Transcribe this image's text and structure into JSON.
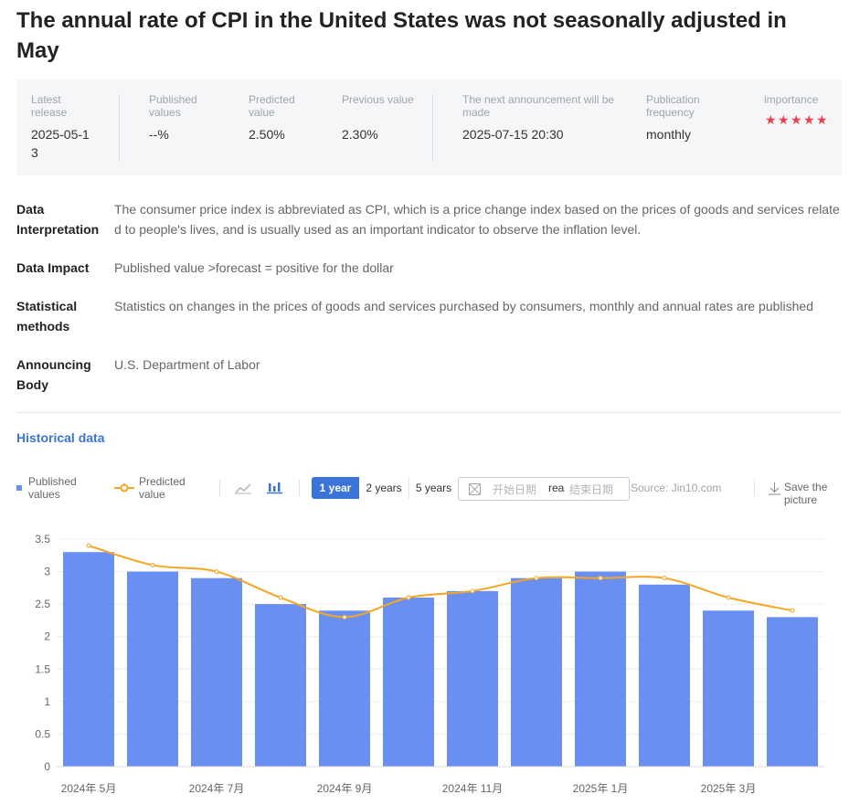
{
  "header": {
    "title": "The annual rate of CPI in the United States was not seasonally adjusted in May"
  },
  "summary": [
    {
      "label": "Latest release",
      "value": "2025-05-13"
    },
    {
      "label": "Published values",
      "value": "--%"
    },
    {
      "label": "Predicted value",
      "value": "2.50%"
    },
    {
      "label": "Previous value",
      "value": "2.30%"
    },
    {
      "label": "The next announcement will be made",
      "value": "2025-07-15 20:30"
    },
    {
      "label": "Publication frequency",
      "value": "monthly"
    },
    {
      "label": "importance",
      "stars": 5
    }
  ],
  "details": [
    {
      "label": "Data Interpretation",
      "text": "The consumer price index is abbreviated as CPI, which is a price change index based on the prices of goods and services related to people's lives, and is usually used as an important indicator to observe the inflation level."
    },
    {
      "label": "Data Impact",
      "text": "Published value >forecast = positive for the dollar"
    },
    {
      "label": "Statistical methods",
      "text": "Statistics on changes in the prices of goods and services purchased by consumers, monthly and annual rates are published"
    },
    {
      "label": "Announcing Body",
      "text": "U.S. Department of Labor"
    }
  ],
  "section_title": "Historical data",
  "controls": {
    "ranges": [
      "1 year",
      "2 years",
      "5 years"
    ],
    "start_placeholder": "开始日期",
    "separator": "rea",
    "end_placeholder": "结束日期",
    "source": "Source: Jin10.com",
    "save": "Save the picture"
  },
  "chart_data": {
    "type": "bar",
    "categories": [
      "2024年 5月",
      null,
      "2024年 7月",
      null,
      "2024年 9月",
      null,
      "2024年 11月",
      null,
      "2025年 1月",
      null,
      "2025年 3月",
      null
    ],
    "series": [
      {
        "name": "Published values",
        "type": "bar",
        "color": "#6a8ff2",
        "values": [
          3.3,
          3.0,
          2.9,
          2.5,
          2.4,
          2.6,
          2.7,
          2.9,
          3.0,
          2.8,
          2.4,
          2.3
        ]
      },
      {
        "name": "Predicted value",
        "type": "line",
        "color": "#f5a623",
        "values": [
          3.4,
          3.1,
          3.0,
          2.6,
          2.3,
          2.6,
          2.7,
          2.9,
          2.9,
          2.9,
          2.6,
          2.4
        ]
      }
    ],
    "ylim": [
      0,
      3.5
    ],
    "yticks": [
      0,
      0.5,
      1,
      1.5,
      2,
      2.5,
      3,
      3.5
    ],
    "grid": true
  }
}
